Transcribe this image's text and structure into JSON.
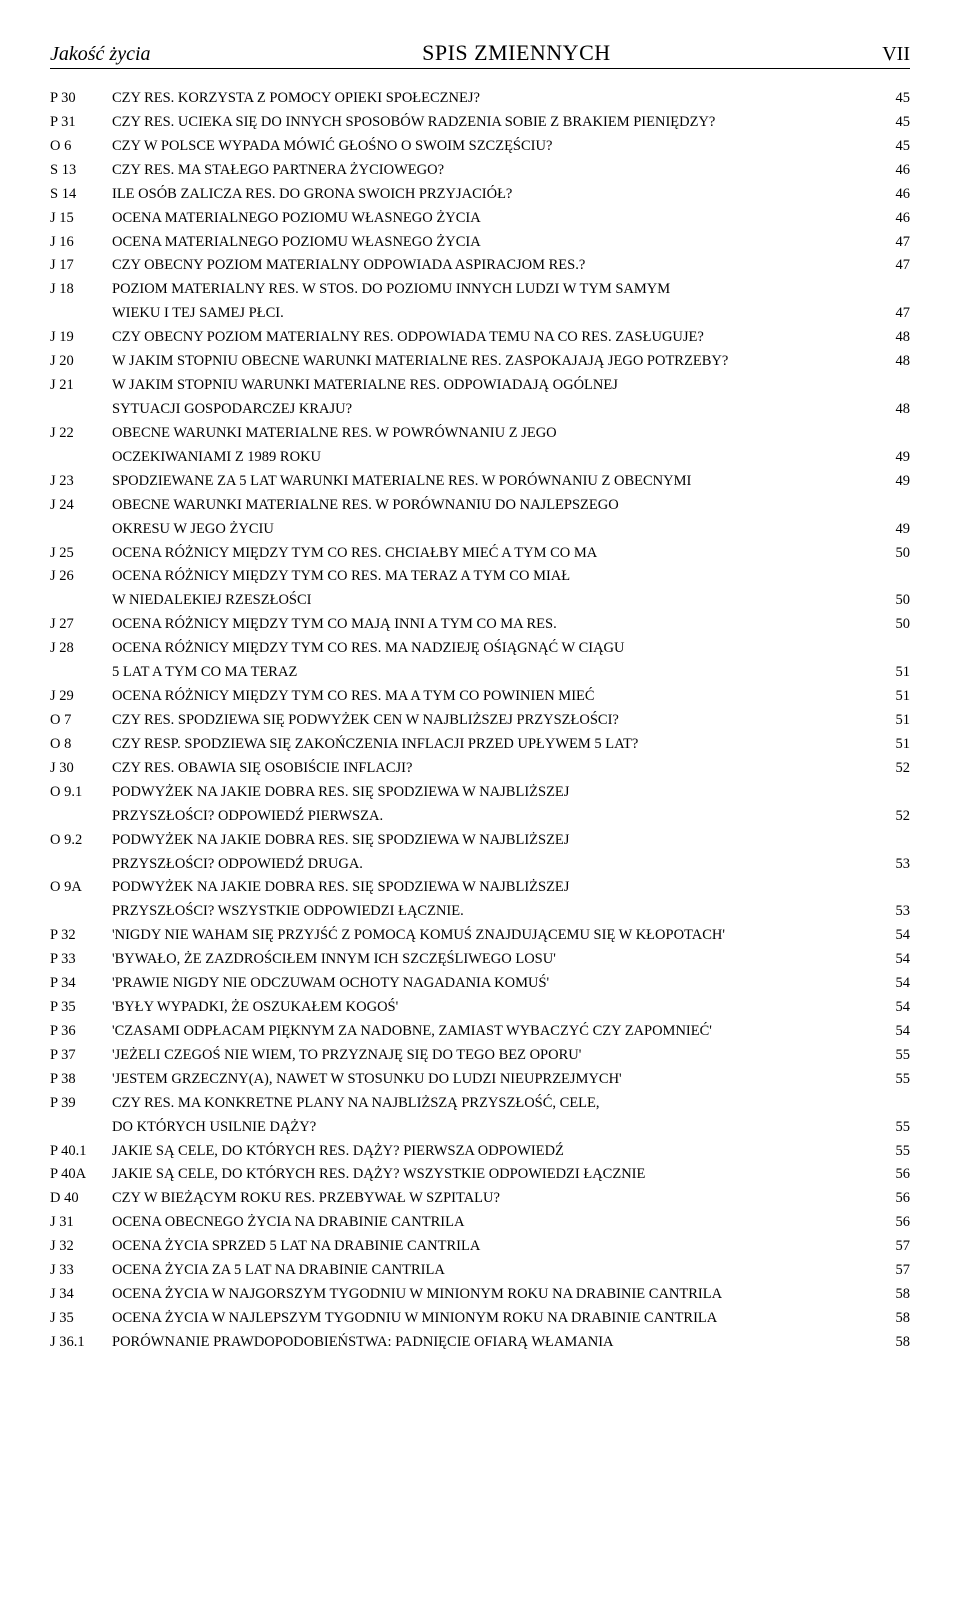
{
  "header": {
    "left": "Jakość życia",
    "center": "SPIS ZMIENNYCH",
    "right": "VII"
  },
  "entries": [
    {
      "code": "P 30",
      "lines": [
        "CZY RES. KORZYSTA Z POMOCY OPIEKI SPOŁECZNEJ?"
      ],
      "page": "45"
    },
    {
      "code": "P 31",
      "lines": [
        "CZY RES. UCIEKA SIĘ DO INNYCH  SPOSOBÓW RADZENIA SOBIE Z BRAKIEM PIENIĘDZY?"
      ],
      "page": "45"
    },
    {
      "code": "O 6",
      "lines": [
        "CZY W POLSCE WYPADA MÓWIĆ GŁOŚNO O SWOIM SZCZĘŚCIU?"
      ],
      "page": "45"
    },
    {
      "code": "S 13",
      "lines": [
        "CZY RES. MA STAŁEGO PARTNERA ŻYCIOWEGO?"
      ],
      "page": "46"
    },
    {
      "code": "S 14",
      "lines": [
        "ILE OSÓB ZALICZA RES. DO GRONA SWOICH PRZYJACIÓŁ?"
      ],
      "page": "46"
    },
    {
      "code": "J 15",
      "lines": [
        "OCENA MATERIALNEGO POZIOMU WŁASNEGO ŻYCIA"
      ],
      "page": "46"
    },
    {
      "code": "J 16",
      "lines": [
        "OCENA MATERIALNEGO POZIOMU WŁASNEGO ŻYCIA"
      ],
      "page": "47"
    },
    {
      "code": "J 17",
      "lines": [
        "CZY OBECNY POZIOM MATERIALNY ODPOWIADA ASPIRACJOM RES.?"
      ],
      "page": "47"
    },
    {
      "code": "J 18",
      "lines": [
        "POZIOM MATERIALNY RES. W STOS. DO POZIOMU INNYCH LUDZI W TYM SAMYM",
        "WIEKU I TEJ SAMEJ PŁCI."
      ],
      "page": "47"
    },
    {
      "code": "J 19",
      "lines": [
        "CZY OBECNY POZIOM MATERIALNY RES. ODPOWIADA TEMU NA CO RES. ZASŁUGUJE?"
      ],
      "page": "48"
    },
    {
      "code": "J 20",
      "lines": [
        "W JAKIM STOPNIU OBECNE WARUNKI MATERIALNE RES. ZASPOKAJAJĄ JEGO POTRZEBY?"
      ],
      "page": "48"
    },
    {
      "code": "J 21",
      "lines": [
        "W JAKIM STOPNIU WARUNKI MATERIALNE RES. ODPOWIADAJĄ OGÓLNEJ",
        "SYTUACJI GOSPODARCZEJ KRAJU?"
      ],
      "page": "48"
    },
    {
      "code": "J 22",
      "lines": [
        "OBECNE WARUNKI MATERIALNE RES. W POWRÓWNANIU Z JEGO",
        "OCZEKIWANIAMI Z 1989 ROKU"
      ],
      "page": "49"
    },
    {
      "code": "J 23",
      "lines": [
        "SPODZIEWANE ZA 5 LAT WARUNKI MATERIALNE RES. W PORÓWNANIU Z OBECNYMI"
      ],
      "page": "49"
    },
    {
      "code": "J 24",
      "lines": [
        "OBECNE WARUNKI MATERIALNE RES. W PORÓWNANIU DO NAJLEPSZEGO",
        "OKRESU W JEGO ŻYCIU"
      ],
      "page": "49"
    },
    {
      "code": "J 25",
      "lines": [
        "OCENA RÓŻNICY MIĘDZY TYM CO RES. CHCIAŁBY MIEĆ A TYM CO MA"
      ],
      "page": "50"
    },
    {
      "code": "J 26",
      "lines": [
        "OCENA RÓŻNICY MIĘDZY TYM CO RES. MA TERAZ A TYM CO MIAŁ",
        "W NIEDALEKIEJ RZESZŁOŚCI"
      ],
      "page": "50"
    },
    {
      "code": "J 27",
      "lines": [
        "OCENA RÓŻNICY MIĘDZY TYM CO MAJĄ INNI A TYM CO MA RES."
      ],
      "page": "50"
    },
    {
      "code": "J 28",
      "lines": [
        "OCENA RÓŻNICY MIĘDZY TYM CO RES. MA NADZIEJĘ OŚIĄGNĄĆ W CIĄGU",
        "5 LAT A TYM CO MA TERAZ"
      ],
      "page": "51"
    },
    {
      "code": "J 29",
      "lines": [
        "OCENA RÓŻNICY MIĘDZY TYM CO RES. MA A TYM CO POWINIEN MIEĆ"
      ],
      "page": "51"
    },
    {
      "code": "O 7",
      "lines": [
        "CZY RES. SPODZIEWA SIĘ PODWYŻEK CEN W NAJBLIŻSZEJ PRZYSZŁOŚCI?"
      ],
      "page": "51"
    },
    {
      "code": "O 8",
      "lines": [
        "CZY RESP. SPODZIEWA SIĘ ZAKOŃCZENIA INFLACJI PRZED UPŁYWEM 5 LAT?"
      ],
      "page": "51"
    },
    {
      "code": "J 30",
      "lines": [
        "CZY RES. OBAWIA SIĘ OSOBIŚCIE INFLACJI?"
      ],
      "page": "52"
    },
    {
      "code": "O 9.1",
      "lines": [
        "PODWYŻEK NA JAKIE DOBRA RES. SIĘ SPODZIEWA W NAJBLIŻSZEJ",
        "PRZYSZŁOŚCI? ODPOWIEDŹ PIERWSZA."
      ],
      "page": "52"
    },
    {
      "code": "O 9.2",
      "lines": [
        "PODWYŻEK NA JAKIE DOBRA RES. SIĘ SPODZIEWA W NAJBLIŻSZEJ",
        "PRZYSZŁOŚCI? ODPOWIEDŹ DRUGA."
      ],
      "page": "53"
    },
    {
      "code": "O 9A",
      "lines": [
        "PODWYŻEK NA JAKIE DOBRA RES. SIĘ SPODZIEWA W NAJBLIŻSZEJ",
        "PRZYSZŁOŚCI? WSZYSTKIE ODPOWIEDZI ŁĄCZNIE."
      ],
      "page": "53"
    },
    {
      "code": "P 32",
      "lines": [
        "'NIGDY NIE WAHAM SIĘ PRZYJŚĆ Z POMOCĄ KOMUŚ ZNAJDUJĄCEMU SIĘ W KŁOPOTACH'"
      ],
      "page": "54"
    },
    {
      "code": "P 33",
      "lines": [
        "'BYWAŁO, ŻE ZAZDROŚCIŁEM INNYM ICH SZCZĘŚLIWEGO LOSU'"
      ],
      "page": "54"
    },
    {
      "code": "P 34",
      "lines": [
        "'PRAWIE NIGDY NIE ODCZUWAM OCHOTY NAGADANIA KOMUŚ'"
      ],
      "page": "54"
    },
    {
      "code": "P 35",
      "lines": [
        "'BYŁY WYPADKI, ŻE OSZUKAŁEM KOGOŚ'"
      ],
      "page": "54"
    },
    {
      "code": "P 36",
      "lines": [
        "'CZASAMI ODPŁACAM PIĘKNYM ZA NADOBNE, ZAMIAST WYBACZYĆ CZY ZAPOMNIEĆ'"
      ],
      "page": "54"
    },
    {
      "code": "P 37",
      "lines": [
        "'JEŻELI CZEGOŚ NIE WIEM, TO PRZYZNAJĘ SIĘ DO TEGO BEZ OPORU'"
      ],
      "page": "55"
    },
    {
      "code": "P 38",
      "lines": [
        "'JESTEM GRZECZNY(A), NAWET W STOSUNKU DO LUDZI NIEUPRZEJMYCH'"
      ],
      "page": "55"
    },
    {
      "code": "P 39",
      "lines": [
        "CZY RES. MA KONKRETNE PLANY NA NAJBLIŻSZĄ PRZYSZŁOŚĆ, CELE,",
        "DO KTÓRYCH USILNIE DĄŻY?"
      ],
      "page": "55"
    },
    {
      "code": "P 40.1",
      "lines": [
        "JAKIE SĄ CELE, DO KTÓRYCH RES. DĄŻY? PIERWSZA ODPOWIEDŹ"
      ],
      "page": "55"
    },
    {
      "code": "P 40A",
      "lines": [
        "JAKIE SĄ CELE, DO KTÓRYCH RES. DĄŻY? WSZYSTKIE ODPOWIEDZI ŁĄCZNIE"
      ],
      "page": "56"
    },
    {
      "code": "D 40",
      "lines": [
        "CZY W BIEŻĄCYM ROKU RES. PRZEBYWAŁ W SZPITALU?"
      ],
      "page": "56"
    },
    {
      "code": "J 31",
      "lines": [
        "OCENA OBECNEGO ŻYCIA NA DRABINIE CANTRILA"
      ],
      "page": "56"
    },
    {
      "code": "J 32",
      "lines": [
        "OCENA ŻYCIA SPRZED 5 LAT NA DRABINIE CANTRILA"
      ],
      "page": "57"
    },
    {
      "code": "J 33",
      "lines": [
        "OCENA ŻYCIA ZA 5 LAT NA DRABINIE CANTRILA"
      ],
      "page": "57"
    },
    {
      "code": "J 34",
      "lines": [
        "OCENA ŻYCIA W NAJGORSZYM TYGODNIU W MINIONYM ROKU NA DRABINIE CANTRILA"
      ],
      "page": "58"
    },
    {
      "code": "J 35",
      "lines": [
        "OCENA ŻYCIA W NAJLEPSZYM TYGODNIU W MINIONYM ROKU NA DRABINIE CANTRILA"
      ],
      "page": "58"
    },
    {
      "code": "J 36.1",
      "lines": [
        "PORÓWNANIE PRAWDOPODOBIEŃSTWA: PADNIĘCIE OFIARĄ WŁAMANIA"
      ],
      "page": "58"
    }
  ]
}
